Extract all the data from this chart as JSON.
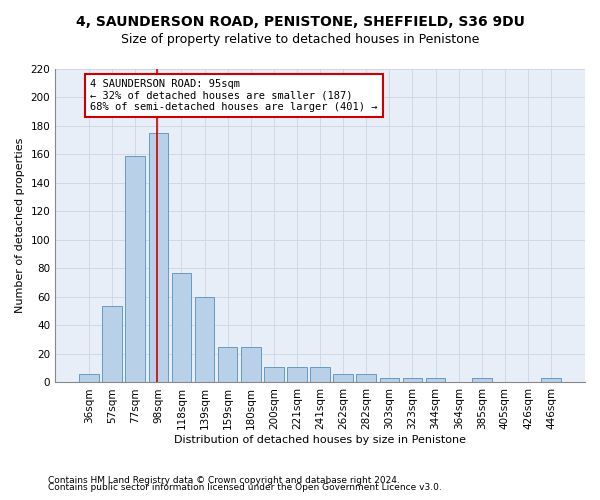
{
  "title1": "4, SAUNDERSON ROAD, PENISTONE, SHEFFIELD, S36 9DU",
  "title2": "Size of property relative to detached houses in Penistone",
  "xlabel": "Distribution of detached houses by size in Penistone",
  "ylabel": "Number of detached properties",
  "bar_labels": [
    "36sqm",
    "57sqm",
    "77sqm",
    "98sqm",
    "118sqm",
    "139sqm",
    "159sqm",
    "180sqm",
    "200sqm",
    "221sqm",
    "241sqm",
    "262sqm",
    "282sqm",
    "303sqm",
    "323sqm",
    "344sqm",
    "364sqm",
    "385sqm",
    "405sqm",
    "426sqm",
    "446sqm"
  ],
  "bar_values": [
    6,
    54,
    159,
    175,
    77,
    60,
    25,
    25,
    11,
    11,
    11,
    6,
    6,
    3,
    3,
    3,
    0,
    3,
    0,
    0,
    3
  ],
  "bar_color": "#b8d0e8",
  "bar_edge_color": "#5590c0",
  "grid_color": "#d0d8e8",
  "annotation_text_line1": "4 SAUNDERSON ROAD: 95sqm",
  "annotation_text_line2": "← 32% of detached houses are smaller (187)",
  "annotation_text_line3": "68% of semi-detached houses are larger (401) →",
  "annotation_box_color": "#ffffff",
  "annotation_box_edge_color": "#cc0000",
  "annotation_line_color": "#cc0000",
  "footnote1": "Contains HM Land Registry data © Crown copyright and database right 2024.",
  "footnote2": "Contains public sector information licensed under the Open Government Licence v3.0.",
  "ylim_max": 220,
  "yticks": [
    0,
    20,
    40,
    60,
    80,
    100,
    120,
    140,
    160,
    180,
    200,
    220
  ],
  "title1_fontsize": 10,
  "title2_fontsize": 9,
  "axis_label_fontsize": 8,
  "ylabel_fontsize": 8,
  "tick_fontsize": 7.5,
  "annotation_fontsize": 7.5,
  "footnote_fontsize": 6.5,
  "vline_bar_index": 2.92
}
